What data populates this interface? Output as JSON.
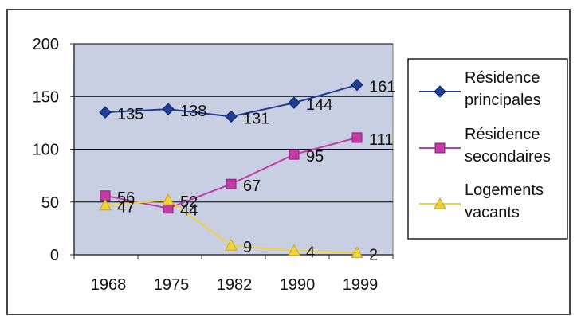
{
  "chart_data": {
    "type": "line",
    "categories": [
      "1968",
      "1975",
      "1982",
      "1990",
      "1999"
    ],
    "ylim": [
      0,
      200
    ],
    "yticks": [
      "0",
      "50",
      "100",
      "150",
      "200"
    ],
    "grid": true,
    "legend_position": "right",
    "series": [
      {
        "name": "Résidence principales",
        "legend_lines": [
          "Résidence",
          "principales"
        ],
        "values": [
          135,
          138,
          131,
          144,
          161
        ],
        "color": "#1f3f94",
        "marker": "diamond"
      },
      {
        "name": "Résidence secondaires",
        "legend_lines": [
          "Résidence",
          "secondaires"
        ],
        "values": [
          56,
          44,
          67,
          95,
          111
        ],
        "color": "#c43aa6",
        "marker": "square"
      },
      {
        "name": "Logements vacants",
        "legend_lines": [
          "Logements",
          "vacants"
        ],
        "values": [
          47,
          52,
          9,
          4,
          2
        ],
        "color": "#f2d23c",
        "marker": "triangle"
      }
    ],
    "colors": {
      "plot_background": "#c8cfe2",
      "gridline": "#000000"
    }
  }
}
